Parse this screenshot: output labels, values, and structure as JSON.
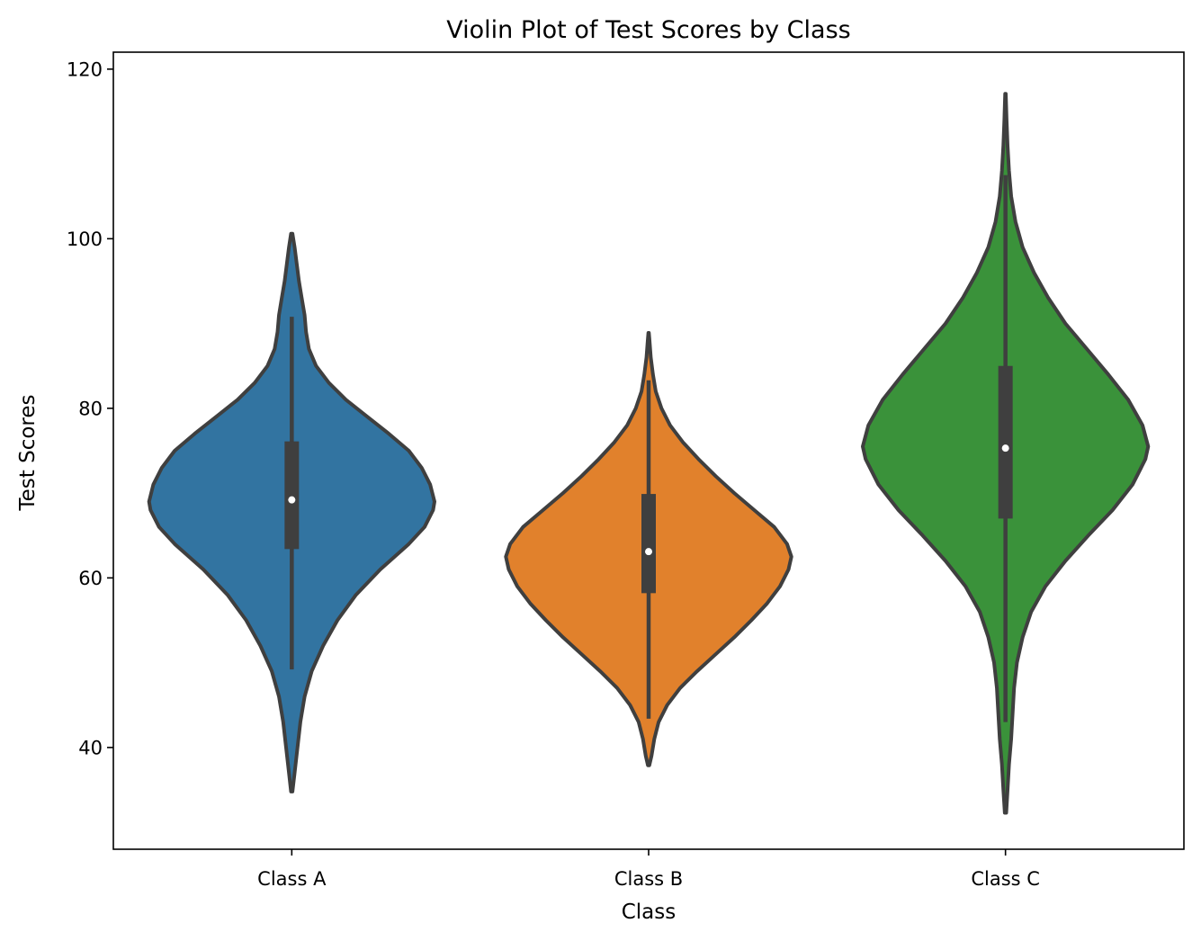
{
  "chart_data": {
    "type": "violin",
    "title": "Violin Plot of Test Scores by Class",
    "xlabel": "Class",
    "ylabel": "Test Scores",
    "ylim": [
      28,
      122
    ],
    "yticks": [
      40,
      60,
      80,
      100,
      120
    ],
    "grid": false,
    "legend": false,
    "categories": [
      "Class A",
      "Class B",
      "Class C"
    ],
    "series": [
      {
        "category": "Class A",
        "color": "#3274a1",
        "median": 69.2,
        "q1": 63.4,
        "q3": 76.1,
        "whisker_low": 49.2,
        "whisker_high": 90.8,
        "min": 34.8,
        "max": 100.6,
        "density": [
          [
            34.8,
            0.005
          ],
          [
            37,
            0.02
          ],
          [
            40,
            0.04
          ],
          [
            43,
            0.06
          ],
          [
            46,
            0.09
          ],
          [
            49,
            0.14
          ],
          [
            52,
            0.22
          ],
          [
            55,
            0.32
          ],
          [
            58,
            0.45
          ],
          [
            61,
            0.62
          ],
          [
            64,
            0.82
          ],
          [
            66,
            0.93
          ],
          [
            68,
            0.99
          ],
          [
            69,
            1.0
          ],
          [
            71,
            0.97
          ],
          [
            73,
            0.91
          ],
          [
            75,
            0.82
          ],
          [
            77,
            0.68
          ],
          [
            79,
            0.53
          ],
          [
            81,
            0.38
          ],
          [
            83,
            0.26
          ],
          [
            85,
            0.17
          ],
          [
            87,
            0.12
          ],
          [
            89,
            0.1
          ],
          [
            91,
            0.09
          ],
          [
            93,
            0.07
          ],
          [
            95,
            0.05
          ],
          [
            97,
            0.035
          ],
          [
            99,
            0.02
          ],
          [
            100.6,
            0.005
          ]
        ]
      },
      {
        "category": "Class B",
        "color": "#e1812c",
        "median": 63.1,
        "q1": 58.2,
        "q3": 69.9,
        "whisker_low": 43.4,
        "whisker_high": 83.3,
        "min": 37.9,
        "max": 88.9,
        "density": [
          [
            37.9,
            0.005
          ],
          [
            39,
            0.02
          ],
          [
            41,
            0.04
          ],
          [
            43,
            0.07
          ],
          [
            45,
            0.13
          ],
          [
            47,
            0.22
          ],
          [
            49,
            0.34
          ],
          [
            51,
            0.47
          ],
          [
            53,
            0.6
          ],
          [
            55,
            0.72
          ],
          [
            57,
            0.83
          ],
          [
            59,
            0.92
          ],
          [
            61,
            0.98
          ],
          [
            62.5,
            1.0
          ],
          [
            64,
            0.97
          ],
          [
            66,
            0.88
          ],
          [
            68,
            0.74
          ],
          [
            70,
            0.6
          ],
          [
            72,
            0.47
          ],
          [
            74,
            0.35
          ],
          [
            76,
            0.24
          ],
          [
            78,
            0.15
          ],
          [
            80,
            0.09
          ],
          [
            82,
            0.05
          ],
          [
            84,
            0.03
          ],
          [
            86,
            0.015
          ],
          [
            88,
            0.006
          ],
          [
            88.9,
            0.002
          ]
        ]
      },
      {
        "category": "Class C",
        "color": "#3a923a",
        "median": 75.3,
        "q1": 67.0,
        "q3": 85.0,
        "whisker_low": 43.0,
        "whisker_high": 107.5,
        "min": 32.3,
        "max": 117.1,
        "density": [
          [
            32.3,
            0.005
          ],
          [
            35,
            0.015
          ],
          [
            38,
            0.025
          ],
          [
            41,
            0.04
          ],
          [
            44,
            0.05
          ],
          [
            47,
            0.06
          ],
          [
            50,
            0.08
          ],
          [
            53,
            0.12
          ],
          [
            56,
            0.18
          ],
          [
            59,
            0.28
          ],
          [
            62,
            0.42
          ],
          [
            65,
            0.58
          ],
          [
            68,
            0.75
          ],
          [
            71,
            0.89
          ],
          [
            74,
            0.98
          ],
          [
            75.5,
            1.0
          ],
          [
            78,
            0.96
          ],
          [
            81,
            0.86
          ],
          [
            84,
            0.72
          ],
          [
            87,
            0.57
          ],
          [
            90,
            0.42
          ],
          [
            93,
            0.3
          ],
          [
            96,
            0.2
          ],
          [
            99,
            0.12
          ],
          [
            102,
            0.07
          ],
          [
            105,
            0.04
          ],
          [
            108,
            0.025
          ],
          [
            111,
            0.015
          ],
          [
            114,
            0.008
          ],
          [
            117.1,
            0.002
          ]
        ]
      }
    ]
  }
}
